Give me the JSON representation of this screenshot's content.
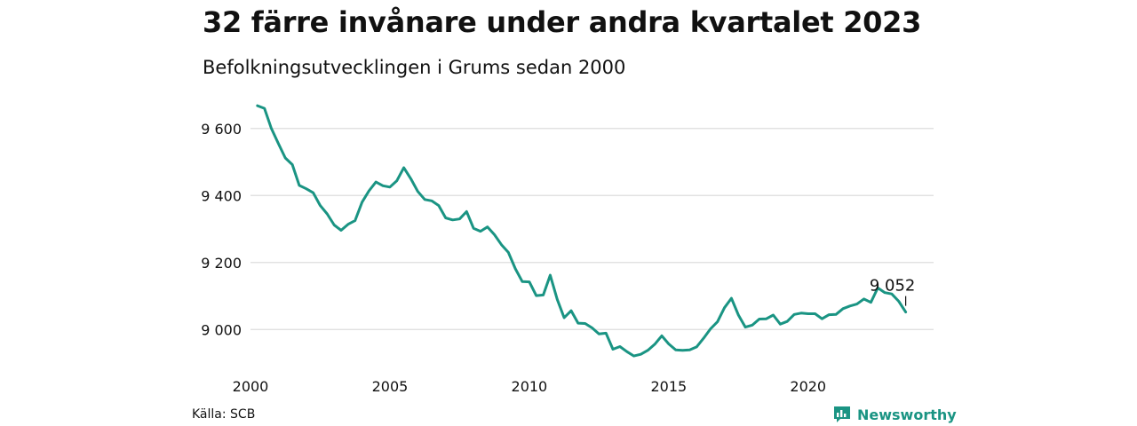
{
  "header": {
    "title": "32 färre invånare under andra kvartalet 2023",
    "subtitle": "Befolkningsutvecklingen i Grums sedan 2000"
  },
  "footer": {
    "source": "Källa: SCB",
    "brand": "Newsworthy"
  },
  "colors": {
    "line": "#1a9483",
    "grid": "#dddddd",
    "text": "#111111",
    "brand": "#1a9483"
  },
  "icons": {
    "brand": "bar-chart-bubble-icon"
  },
  "chart_data": {
    "type": "line",
    "x_ticks": [
      2000,
      2005,
      2010,
      2015,
      2020
    ],
    "y_ticks": [
      9000,
      9200,
      9400,
      9600
    ],
    "y_tick_labels": [
      "9 000",
      "9 200",
      "9 400",
      "9 600"
    ],
    "xlim": [
      2000,
      2024.5
    ],
    "ylim": [
      8900,
      9700
    ],
    "grid": "horizontal",
    "end_label": "9 052",
    "series": [
      {
        "x": [
          2000.25,
          2000.5,
          2000.75,
          2001.0,
          2001.25,
          2001.5,
          2001.75,
          2002.0,
          2002.25,
          2002.5,
          2002.75,
          2003.0,
          2003.25,
          2003.5,
          2003.75,
          2004.0,
          2004.25,
          2004.5,
          2004.75,
          2005.0,
          2005.25,
          2005.5,
          2005.75,
          2006.0,
          2006.25,
          2006.5,
          2006.75,
          2007.0,
          2007.25,
          2007.5,
          2007.75,
          2008.0,
          2008.25,
          2008.5,
          2008.75,
          2009.0,
          2009.25,
          2009.5,
          2009.75,
          2010.0,
          2010.25,
          2010.5,
          2010.75,
          2011.0,
          2011.25,
          2011.5,
          2011.75,
          2012.0,
          2012.25,
          2012.5,
          2012.75,
          2013.0,
          2013.25,
          2013.5,
          2013.75,
          2014.0,
          2014.25,
          2014.5,
          2014.75,
          2015.0,
          2015.25,
          2015.5,
          2015.75,
          2016.0,
          2016.25,
          2016.5,
          2016.75,
          2017.0,
          2017.25,
          2017.5,
          2017.75,
          2018.0,
          2018.25,
          2018.5,
          2018.75,
          2019.0,
          2019.25,
          2019.5,
          2019.75,
          2020.0,
          2020.25,
          2020.5,
          2020.75,
          2021.0,
          2021.25,
          2021.5,
          2021.75,
          2022.0,
          2022.25,
          2022.5,
          2022.75,
          2023.0,
          2023.25,
          2023.5
        ],
        "values": [
          9668,
          9660,
          9600,
          9555,
          9512,
          9492,
          9430,
          9420,
          9408,
          9370,
          9345,
          9312,
          9296,
          9314,
          9325,
          9380,
          9414,
          9440,
          9429,
          9425,
          9444,
          9483,
          9450,
          9412,
          9388,
          9384,
          9370,
          9333,
          9327,
          9330,
          9352,
          9302,
          9293,
          9306,
          9283,
          9253,
          9230,
          9181,
          9143,
          9142,
          9101,
          9103,
          9162,
          9090,
          9035,
          9056,
          9019,
          9018,
          9005,
          8987,
          8989,
          8941,
          8949,
          8934,
          8921,
          8926,
          8938,
          8956,
          8981,
          8957,
          8939,
          8938,
          8939,
          8948,
          8974,
          9002,
          9023,
          9065,
          9093,
          9043,
          9007,
          9013,
          9031,
          9032,
          9043,
          9016,
          9024,
          9045,
          9049,
          9047,
          9047,
          9032,
          9044,
          9045,
          9062,
          9070,
          9076,
          9091,
          9081,
          9124,
          9110,
          9106,
          9084,
          9052
        ]
      }
    ]
  }
}
